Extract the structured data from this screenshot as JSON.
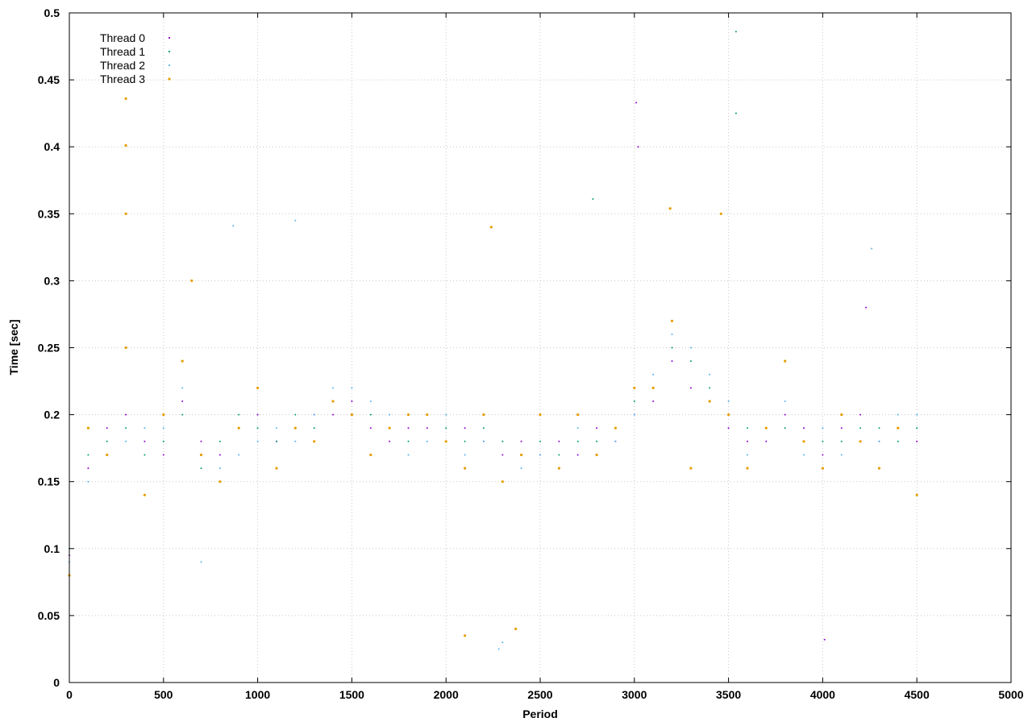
{
  "chart_data": {
    "type": "scatter",
    "title": "",
    "xlabel": "Period",
    "ylabel": "Time [sec]",
    "xlim": [
      0,
      5000
    ],
    "ylim": [
      0,
      0.5
    ],
    "x_ticks": [
      0,
      500,
      1000,
      1500,
      2000,
      2500,
      3000,
      3500,
      4000,
      4500,
      5000
    ],
    "y_ticks": [
      0,
      0.05,
      0.1,
      0.15,
      0.2,
      0.25,
      0.3,
      0.35,
      0.4,
      0.45,
      0.5
    ],
    "y_tick_labels": [
      "0",
      "0.05",
      "0.1",
      "0.15",
      "0.2",
      "0.25",
      "0.3",
      "0.35",
      "0.4",
      "0.45",
      "0.5"
    ],
    "grid": true,
    "legend_position": "top-left",
    "series": [
      {
        "name": "Thread 0",
        "color": "#9400d3",
        "points": [
          [
            0,
            0.095
          ],
          [
            100,
            0.16
          ],
          [
            200,
            0.19
          ],
          [
            300,
            0.2
          ],
          [
            400,
            0.18
          ],
          [
            500,
            0.17
          ],
          [
            600,
            0.21
          ],
          [
            700,
            0.18
          ],
          [
            800,
            0.17
          ],
          [
            900,
            0.19
          ],
          [
            1000,
            0.2
          ],
          [
            1100,
            0.18
          ],
          [
            1200,
            0.19
          ],
          [
            1300,
            0.2
          ],
          [
            1400,
            0.2
          ],
          [
            1500,
            0.21
          ],
          [
            1600,
            0.19
          ],
          [
            1700,
            0.18
          ],
          [
            1800,
            0.19
          ],
          [
            1900,
            0.19
          ],
          [
            2000,
            0.18
          ],
          [
            2100,
            0.19
          ],
          [
            2200,
            0.18
          ],
          [
            2300,
            0.17
          ],
          [
            2400,
            0.18
          ],
          [
            2500,
            0.17
          ],
          [
            2600,
            0.18
          ],
          [
            2700,
            0.17
          ],
          [
            2800,
            0.19
          ],
          [
            2900,
            0.18
          ],
          [
            3000,
            0.2
          ],
          [
            3100,
            0.21
          ],
          [
            3200,
            0.24
          ],
          [
            3300,
            0.22
          ],
          [
            3400,
            0.21
          ],
          [
            3500,
            0.19
          ],
          [
            3600,
            0.18
          ],
          [
            3700,
            0.18
          ],
          [
            3800,
            0.2
          ],
          [
            3900,
            0.19
          ],
          [
            4000,
            0.17
          ],
          [
            4100,
            0.19
          ],
          [
            4200,
            0.2
          ],
          [
            4300,
            0.18
          ],
          [
            4400,
            0.19
          ],
          [
            4500,
            0.18
          ],
          [
            3010,
            0.433
          ],
          [
            3020,
            0.4
          ],
          [
            4010,
            0.032
          ],
          [
            4230,
            0.28
          ]
        ]
      },
      {
        "name": "Thread 1",
        "color": "#009e73",
        "points": [
          [
            0,
            0.1
          ],
          [
            100,
            0.17
          ],
          [
            200,
            0.18
          ],
          [
            300,
            0.19
          ],
          [
            400,
            0.17
          ],
          [
            500,
            0.18
          ],
          [
            600,
            0.2
          ],
          [
            700,
            0.16
          ],
          [
            800,
            0.18
          ],
          [
            900,
            0.2
          ],
          [
            1000,
            0.19
          ],
          [
            1100,
            0.18
          ],
          [
            1200,
            0.2
          ],
          [
            1300,
            0.19
          ],
          [
            1400,
            0.21
          ],
          [
            1500,
            0.2
          ],
          [
            1600,
            0.2
          ],
          [
            1700,
            0.19
          ],
          [
            1800,
            0.18
          ],
          [
            1900,
            0.2
          ],
          [
            2000,
            0.19
          ],
          [
            2100,
            0.18
          ],
          [
            2200,
            0.19
          ],
          [
            2300,
            0.18
          ],
          [
            2400,
            0.17
          ],
          [
            2500,
            0.18
          ],
          [
            2600,
            0.17
          ],
          [
            2700,
            0.18
          ],
          [
            2800,
            0.18
          ],
          [
            2900,
            0.19
          ],
          [
            3000,
            0.21
          ],
          [
            3100,
            0.22
          ],
          [
            3200,
            0.25
          ],
          [
            3300,
            0.24
          ],
          [
            3400,
            0.22
          ],
          [
            3500,
            0.2
          ],
          [
            3600,
            0.19
          ],
          [
            3700,
            0.19
          ],
          [
            3800,
            0.19
          ],
          [
            3900,
            0.18
          ],
          [
            4000,
            0.18
          ],
          [
            4100,
            0.18
          ],
          [
            4200,
            0.19
          ],
          [
            4300,
            0.19
          ],
          [
            4400,
            0.18
          ],
          [
            4500,
            0.19
          ],
          [
            3540,
            0.486
          ],
          [
            3540,
            0.425
          ],
          [
            2780,
            0.361
          ]
        ]
      },
      {
        "name": "Thread 2",
        "color": "#56b4e9",
        "points": [
          [
            0,
            0.09
          ],
          [
            100,
            0.15
          ],
          [
            200,
            0.17
          ],
          [
            300,
            0.18
          ],
          [
            400,
            0.19
          ],
          [
            500,
            0.19
          ],
          [
            600,
            0.22
          ],
          [
            700,
            0.09
          ],
          [
            800,
            0.16
          ],
          [
            900,
            0.17
          ],
          [
            1000,
            0.18
          ],
          [
            1100,
            0.19
          ],
          [
            1200,
            0.18
          ],
          [
            1300,
            0.2
          ],
          [
            1400,
            0.22
          ],
          [
            1500,
            0.22
          ],
          [
            1600,
            0.21
          ],
          [
            1700,
            0.2
          ],
          [
            1800,
            0.17
          ],
          [
            1900,
            0.18
          ],
          [
            2000,
            0.2
          ],
          [
            2100,
            0.17
          ],
          [
            2200,
            0.18
          ],
          [
            2300,
            0.03
          ],
          [
            2400,
            0.16
          ],
          [
            2500,
            0.17
          ],
          [
            2600,
            0.16
          ],
          [
            2700,
            0.19
          ],
          [
            2800,
            0.17
          ],
          [
            2900,
            0.18
          ],
          [
            3000,
            0.2
          ],
          [
            3100,
            0.23
          ],
          [
            3200,
            0.26
          ],
          [
            3300,
            0.25
          ],
          [
            3400,
            0.23
          ],
          [
            3500,
            0.21
          ],
          [
            3600,
            0.17
          ],
          [
            3700,
            0.19
          ],
          [
            3800,
            0.21
          ],
          [
            3900,
            0.17
          ],
          [
            4000,
            0.19
          ],
          [
            4100,
            0.17
          ],
          [
            4200,
            0.18
          ],
          [
            4300,
            0.18
          ],
          [
            4400,
            0.2
          ],
          [
            4500,
            0.2
          ],
          [
            870,
            0.341
          ],
          [
            1200,
            0.345
          ],
          [
            2280,
            0.025
          ],
          [
            4260,
            0.324
          ]
        ]
      },
      {
        "name": "Thread 3",
        "color": "#e69f00",
        "points": [
          [
            0,
            0.08
          ],
          [
            100,
            0.19
          ],
          [
            200,
            0.17
          ],
          [
            300,
            0.25
          ],
          [
            400,
            0.14
          ],
          [
            500,
            0.2
          ],
          [
            600,
            0.24
          ],
          [
            650,
            0.3
          ],
          [
            700,
            0.17
          ],
          [
            800,
            0.15
          ],
          [
            900,
            0.19
          ],
          [
            1000,
            0.22
          ],
          [
            1100,
            0.16
          ],
          [
            1200,
            0.19
          ],
          [
            1300,
            0.18
          ],
          [
            1400,
            0.21
          ],
          [
            1500,
            0.2
          ],
          [
            1600,
            0.17
          ],
          [
            1700,
            0.19
          ],
          [
            1800,
            0.2
          ],
          [
            1900,
            0.2
          ],
          [
            2000,
            0.18
          ],
          [
            2100,
            0.16
          ],
          [
            2200,
            0.2
          ],
          [
            2300,
            0.15
          ],
          [
            2400,
            0.17
          ],
          [
            2500,
            0.2
          ],
          [
            2600,
            0.16
          ],
          [
            2700,
            0.2
          ],
          [
            2800,
            0.17
          ],
          [
            2900,
            0.19
          ],
          [
            3000,
            0.22
          ],
          [
            3100,
            0.22
          ],
          [
            3200,
            0.27
          ],
          [
            3300,
            0.16
          ],
          [
            3400,
            0.21
          ],
          [
            3500,
            0.2
          ],
          [
            3600,
            0.16
          ],
          [
            3700,
            0.19
          ],
          [
            3800,
            0.24
          ],
          [
            3900,
            0.18
          ],
          [
            4000,
            0.16
          ],
          [
            4100,
            0.2
          ],
          [
            4200,
            0.18
          ],
          [
            4300,
            0.16
          ],
          [
            4400,
            0.19
          ],
          [
            4500,
            0.14
          ],
          [
            300,
            0.436
          ],
          [
            300,
            0.401
          ],
          [
            300,
            0.35
          ],
          [
            2240,
            0.34
          ],
          [
            2100,
            0.035
          ],
          [
            2370,
            0.04
          ],
          [
            3190,
            0.354
          ],
          [
            3460,
            0.35
          ]
        ]
      }
    ]
  }
}
